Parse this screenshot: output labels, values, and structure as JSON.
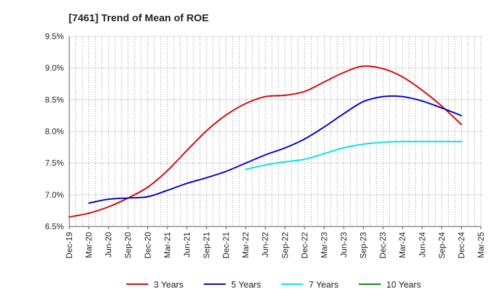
{
  "chart_data": {
    "type": "line",
    "title": "[7461]  Trend of Mean of ROE",
    "xlabel": "",
    "ylabel": "",
    "x": [
      "Dec-19",
      "Mar-20",
      "Jun-20",
      "Sep-20",
      "Dec-20",
      "Mar-21",
      "Jun-21",
      "Sep-21",
      "Dec-21",
      "Mar-22",
      "Jun-22",
      "Sep-22",
      "Dec-22",
      "Mar-23",
      "Jun-23",
      "Sep-23",
      "Dec-23",
      "Mar-24",
      "Jun-24",
      "Sep-24",
      "Dec-24",
      "Mar-25"
    ],
    "ylim": [
      6.5,
      9.5
    ],
    "yticks": [
      6.5,
      7.0,
      7.5,
      8.0,
      8.5,
      9.0,
      9.5
    ],
    "ytick_labels": [
      "6.5%",
      "7.0%",
      "7.5%",
      "8.0%",
      "8.5%",
      "9.0%",
      "9.5%"
    ],
    "grid": true,
    "legend_position": "bottom",
    "series": [
      {
        "name": "3 Years",
        "color": "#dd0000",
        "values": [
          6.65,
          6.71,
          6.81,
          6.95,
          7.12,
          7.38,
          7.7,
          8.01,
          8.26,
          8.44,
          8.55,
          8.57,
          8.63,
          8.78,
          8.93,
          9.03,
          8.99,
          8.86,
          8.65,
          8.4,
          8.11,
          null
        ]
      },
      {
        "name": "5 Years",
        "color": "#0000cc",
        "values": [
          null,
          6.87,
          6.93,
          6.95,
          6.97,
          7.07,
          7.18,
          7.27,
          7.37,
          7.5,
          7.63,
          7.74,
          7.88,
          8.07,
          8.28,
          8.47,
          8.55,
          8.55,
          8.48,
          8.37,
          8.25,
          null
        ]
      },
      {
        "name": "7 Years",
        "color": "#00e5e5",
        "values": [
          null,
          null,
          null,
          null,
          null,
          null,
          null,
          null,
          null,
          7.4,
          7.47,
          7.52,
          7.56,
          7.65,
          7.74,
          7.8,
          7.83,
          7.84,
          7.84,
          7.84,
          7.84,
          null
        ]
      },
      {
        "name": "10 Years",
        "color": "#008800",
        "values": [
          null,
          null,
          null,
          null,
          null,
          null,
          null,
          null,
          null,
          null,
          null,
          null,
          null,
          null,
          null,
          null,
          null,
          null,
          null,
          null,
          null,
          null
        ]
      }
    ]
  }
}
